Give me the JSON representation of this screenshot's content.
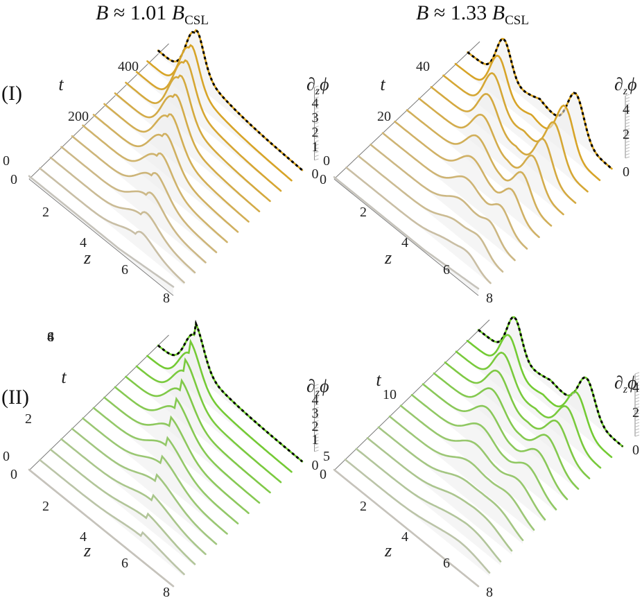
{
  "titles": {
    "left": {
      "lhs": "B",
      "approx": "≈ 1.01",
      "rhs": "B",
      "sub": "CSL"
    },
    "right": {
      "lhs": "B",
      "approx": "≈ 1.33",
      "rhs": "B",
      "sub": "CSL"
    }
  },
  "row_labels": [
    "(I)",
    "(II)"
  ],
  "axis_labels": {
    "z": "z",
    "t": "t",
    "phi": "∂zϕ",
    "phi_sub": "z"
  },
  "colors": {
    "row1_curve": "#d8a21c",
    "row2_curve": "#6ecb2a",
    "early_curve": "#c6c3bb",
    "dashed_overlay": "#000000",
    "surface": "#ededed"
  },
  "chart_data": [
    {
      "type": "line",
      "panel": "I-left",
      "xlabel": "z",
      "ylabel": "t",
      "zlabel": "∂zϕ",
      "x_ticks": [
        "0",
        "2",
        "4",
        "6",
        "8"
      ],
      "t_ticks": [
        "0",
        "200",
        "400"
      ],
      "phi_ticks": [
        "0",
        "1",
        "2",
        "3",
        "4"
      ],
      "xlim": [
        0,
        8
      ],
      "tlim": [
        0,
        440
      ],
      "philim": [
        0,
        5
      ],
      "n_slices": 13,
      "dashed_final_overlay": true,
      "series_peaks_z": [
        5.5,
        5.2,
        4.9,
        4.6,
        4.3,
        4.0,
        3.7,
        3.4,
        3.1,
        2.8,
        2.5,
        2.2,
        2.0
      ],
      "series_peaks_height": [
        0.6,
        1.4,
        2.0,
        2.4,
        2.7,
        2.9,
        3.0,
        3.1,
        3.1,
        3.2,
        3.2,
        3.2,
        3.2
      ]
    },
    {
      "type": "line",
      "panel": "I-right",
      "xlabel": "z",
      "ylabel": "t",
      "zlabel": "∂zϕ",
      "x_ticks": [
        "0",
        "2",
        "4",
        "6",
        "8"
      ],
      "t_ticks": [
        "0",
        "20",
        "40"
      ],
      "phi_ticks": [
        "0",
        "2",
        "4"
      ],
      "xlim": [
        0,
        8
      ],
      "tlim": [
        0,
        45
      ],
      "philim": [
        0,
        5
      ],
      "n_slices": 12,
      "dashed_final_overlay": true,
      "peaks_per_slice": 2
    },
    {
      "type": "line",
      "panel": "II-left",
      "xlabel": "z",
      "ylabel": "t",
      "zlabel": "∂zϕ",
      "x_ticks": [
        "0",
        "2",
        "4",
        "6",
        "8"
      ],
      "t_ticks": [
        "0",
        "2",
        "4",
        "6",
        "8"
      ],
      "phi_ticks": [
        "0",
        "1",
        "2",
        "3",
        "4"
      ],
      "xlim": [
        0,
        8
      ],
      "tlim": [
        0,
        8
      ],
      "philim": [
        0,
        5
      ],
      "n_slices": 13,
      "dashed_final_overlay": true
    },
    {
      "type": "line",
      "panel": "II-right",
      "xlabel": "z",
      "ylabel": "t",
      "zlabel": "∂zϕ",
      "x_ticks": [
        "0",
        "2",
        "4",
        "6",
        "8"
      ],
      "t_ticks": [
        "5",
        "10"
      ],
      "phi_ticks": [
        "0",
        "2",
        "4"
      ],
      "xlim": [
        0,
        8
      ],
      "tlim": [
        0,
        10
      ],
      "philim": [
        0,
        5
      ],
      "n_slices": 14,
      "dashed_final_overlay": true,
      "peaks_per_slice": 2
    }
  ]
}
